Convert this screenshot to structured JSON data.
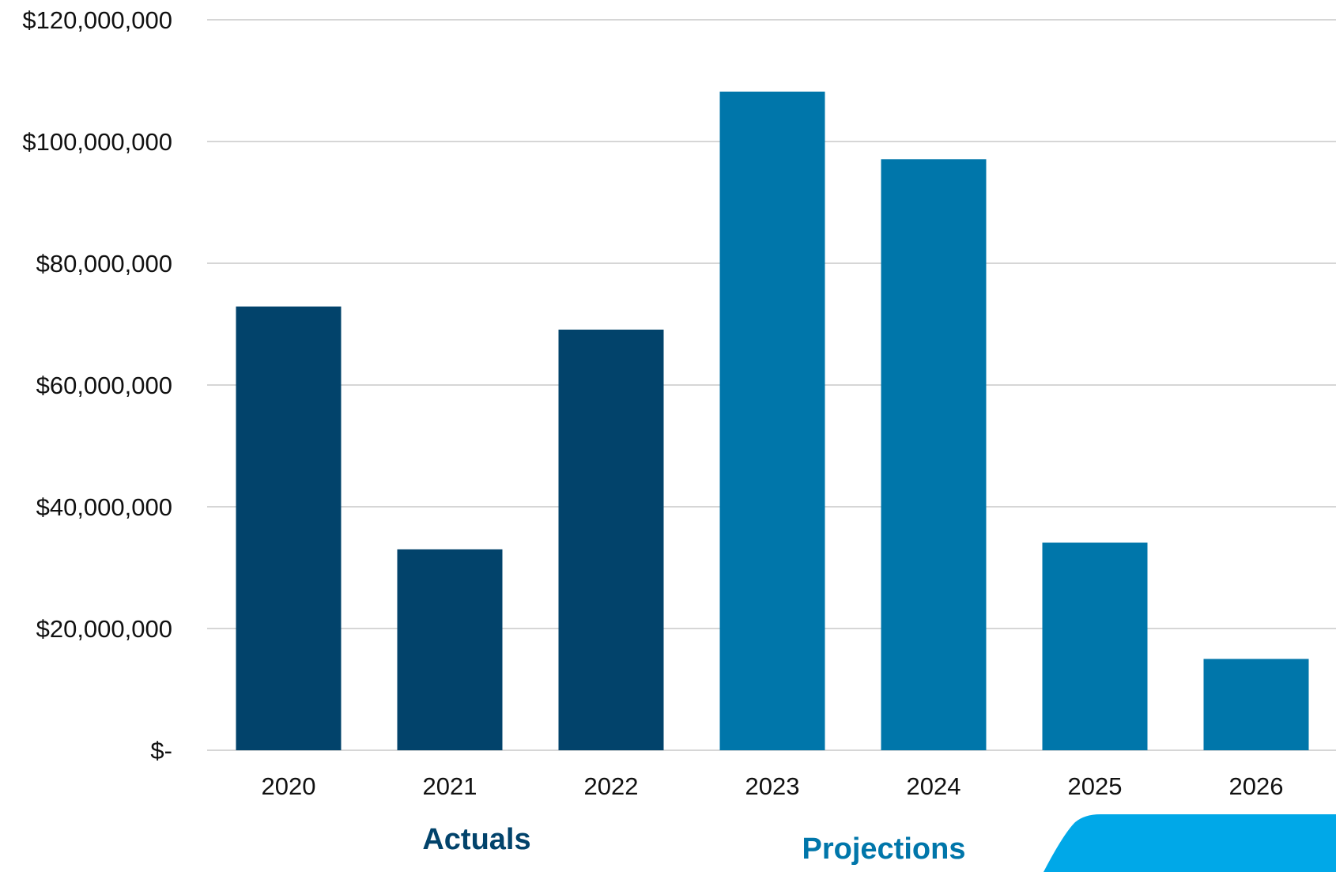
{
  "chart_data": {
    "type": "bar",
    "categories": [
      "2020",
      "2021",
      "2022",
      "2023",
      "2024",
      "2025",
      "2026"
    ],
    "values": [
      72900000,
      33000000,
      69100000,
      108200000,
      97100000,
      34100000,
      15000000
    ],
    "groups": [
      "Actuals",
      "Actuals",
      "Actuals",
      "Projections",
      "Projections",
      "Projections",
      "Projections"
    ],
    "title": "",
    "xlabel": "",
    "ylabel": "",
    "ylim": [
      0,
      120000000
    ],
    "y_ticks": [
      0,
      20000000,
      40000000,
      60000000,
      80000000,
      100000000,
      120000000
    ],
    "y_tick_labels": [
      "$-",
      "$20,000,000",
      "$40,000,000",
      "$60,000,000",
      "$80,000,000",
      "$100,000,000",
      "$120,000,000"
    ],
    "grid": true,
    "legend": "none"
  },
  "group_labels": {
    "actuals": "Actuals",
    "projections": "Projections"
  },
  "colors": {
    "actuals": "#02436b",
    "projections": "#0076aa",
    "accent_shape": "#00a8e8",
    "gridline": "#c8c8c8",
    "actuals_label": "#02436b",
    "projections_label": "#0076aa"
  }
}
